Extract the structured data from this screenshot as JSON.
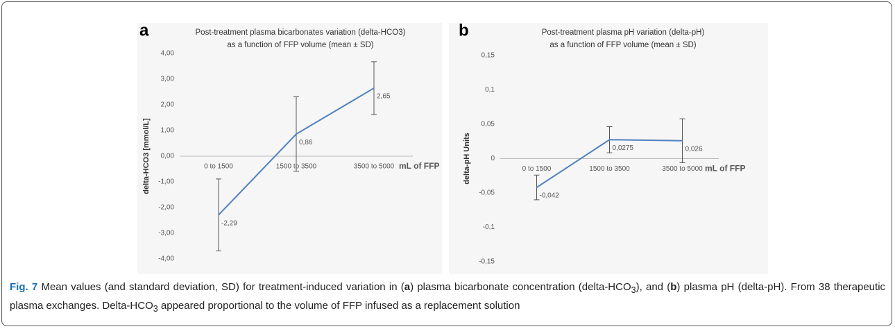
{
  "chart_data": [
    {
      "type": "line",
      "panel_label": "a",
      "title": [
        "Post-treatment plasma bicarbonates variation (delta-HCO3)",
        "as a function  of FFP volume (mean ± SD)"
      ],
      "y_label": "delta-HCO3 [mmol/L]",
      "x_label": "mL of FFP",
      "categories": [
        "0 to 1500",
        "1500 to 3500",
        "3500 to 5000"
      ],
      "values": [
        -2.29,
        0.86,
        2.65
      ],
      "value_labels": [
        "-2,29",
        "0,86",
        "2,65"
      ],
      "errors": [
        1.4,
        1.45,
        1.03
      ],
      "color": "#4f81bd",
      "ylim": [
        -4,
        4
      ],
      "yticks": [
        {
          "value": 4,
          "label": "4,00"
        },
        {
          "value": 3,
          "label": "3,00"
        },
        {
          "value": 2,
          "label": "2,00"
        },
        {
          "value": 1,
          "label": "1,00"
        },
        {
          "value": 0,
          "label": "0,00"
        },
        {
          "value": -1,
          "label": "-1,00"
        },
        {
          "value": -2,
          "label": "-2,00"
        },
        {
          "value": -3,
          "label": "-3,00"
        },
        {
          "value": -4,
          "label": "-4,00"
        }
      ],
      "grid": false
    },
    {
      "type": "line",
      "panel_label": "b",
      "title": [
        "Post-treatment plasma pH variation (delta-pH)",
        "as a function  of FFP volume (mean ± SD)"
      ],
      "y_label": "delta-pH Units",
      "x_label": "mL of FFP",
      "categories": [
        "0 to 1500",
        "1500 to 3500",
        "3500 to 5000"
      ],
      "values": [
        -0.042,
        0.0275,
        0.026
      ],
      "value_labels": [
        "-0,042",
        "0,0275",
        "0,026"
      ],
      "errors": [
        0.018,
        0.019,
        0.032
      ],
      "color": "#4f81bd",
      "ylim": [
        -0.15,
        0.15
      ],
      "yticks": [
        {
          "value": 0.15,
          "label": "0,15"
        },
        {
          "value": 0.1,
          "label": "0,1"
        },
        {
          "value": 0.05,
          "label": "0,05"
        },
        0,
        {
          "value": -0.05,
          "label": "-0,05"
        },
        {
          "value": -0.1,
          "label": "-0,1"
        },
        {
          "value": -0.15,
          "label": "-0,15"
        }
      ],
      "grid": false
    }
  ],
  "caption": {
    "label": "Fig. 7",
    "parts": [
      " Mean values (and standard deviation, SD) for treatment-induced variation in (",
      "a",
      ") plasma bicarbonate concentration (delta-HCO",
      "3",
      "), and (",
      "b",
      ") plasma pH (delta-pH). From 38 therapeutic plasma exchanges. Delta-HCO",
      "3",
      " appeared proportional to the volume of FFP infused as a replacement solution"
    ]
  }
}
